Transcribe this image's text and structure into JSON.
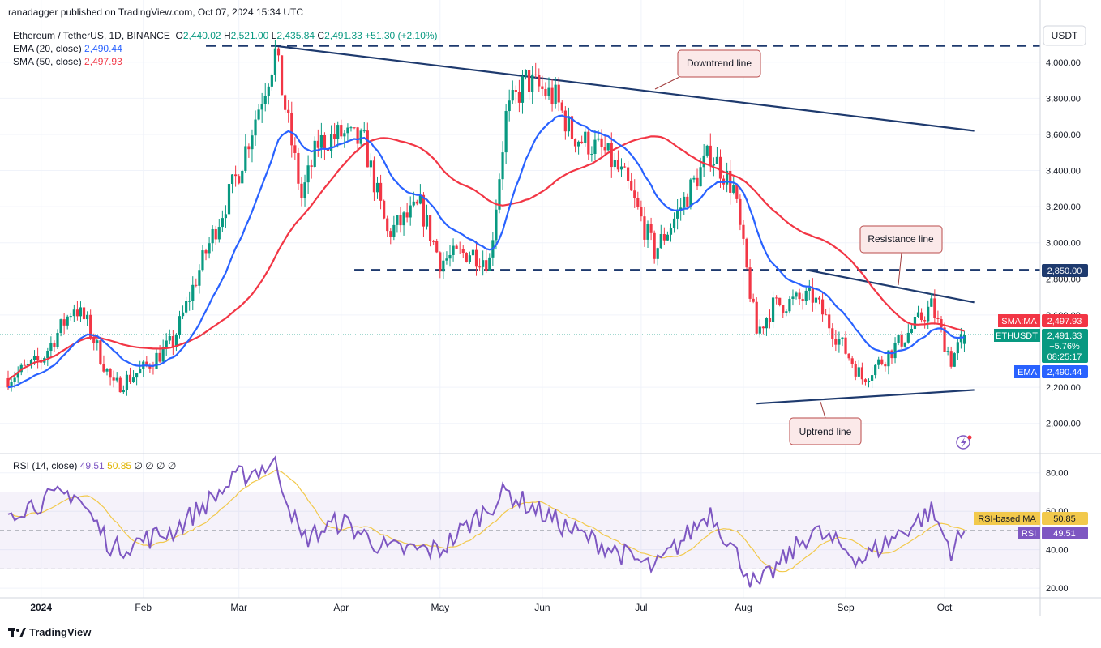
{
  "header": {
    "publisher": "ranadagger published on TradingView.com, Oct 07, 2024 15:34 UTC"
  },
  "legend": {
    "symbol": "Ethereum / TetherUS, 1D, BINANCE",
    "o_label": "O",
    "o": "2,440.02",
    "h_label": "H",
    "h": "2,521.00",
    "l_label": "L",
    "l": "2,435.84",
    "c_label": "C",
    "c": "2,491.33",
    "change": "+51.30 (+2.10%)",
    "ema_label": "EMA (20, close)",
    "ema_value": "2,490.44",
    "sma_label": "SMA (50, close)",
    "sma_value": "2,497.93"
  },
  "rsi_legend": {
    "label": "RSI (14, close)",
    "rsi": "49.51",
    "ma": "50.85",
    "rest": "∅ ∅ ∅ ∅"
  },
  "axis": {
    "currency": "USDT",
    "price_ticks": [
      "4,000.00",
      "3,800.00",
      "3,600.00",
      "3,400.00",
      "3,200.00",
      "3,000.00",
      "2,800.00",
      "2,600.00",
      "2,200.00",
      "2,000.00"
    ],
    "rsi_ticks": [
      "80.00",
      "60.00",
      "40.00",
      "20.00"
    ],
    "x_labels": [
      "2024",
      "Feb",
      "Mar",
      "Apr",
      "May",
      "Jun",
      "Jul",
      "Aug",
      "Sep",
      "Oct"
    ]
  },
  "price_badges": {
    "level": "2,850.00",
    "sma_label": "SMA:MA",
    "sma_value": "2,497.93",
    "symbol": "ETHUSDT",
    "last": "2,491.33",
    "change_pct": "+5.76%",
    "countdown": "08:25:17",
    "ema_label": "EMA",
    "ema_value": "2,490.44",
    "rsi_ma_label": "RSI-based MA",
    "rsi_ma_value": "50.85",
    "rsi_label": "RSI",
    "rsi_value": "49.51"
  },
  "annotations": {
    "downtrend": "Downtrend line",
    "resistance": "Resistance line",
    "uptrend": "Uptrend line"
  },
  "footer": {
    "brand": "TradingView"
  },
  "colors": {
    "up": "#089981",
    "down": "#f23645",
    "ema": "#2962ff",
    "sma": "#f23645",
    "rsi": "#7e57c2",
    "rsi_ma": "#f2c94c",
    "line": "#1e3a6e"
  },
  "chart_data": {
    "type": "candlestick",
    "ylim": [
      1900,
      4120
    ],
    "rsi_ylim": [
      15,
      90
    ],
    "x_range": [
      "2023-12-22",
      "2024-10-30"
    ],
    "levels": [
      4090,
      2850
    ],
    "trendlines": {
      "downtrend": [
        [
          "2024-03-12",
          4090
        ],
        [
          "2024-10-10",
          3620
        ]
      ],
      "resistance": [
        [
          "2024-08-20",
          2850
        ],
        [
          "2024-10-10",
          2670
        ]
      ],
      "uptrend": [
        [
          "2024-08-05",
          2110
        ],
        [
          "2024-10-10",
          2185
        ]
      ]
    },
    "key_points": [
      [
        "2023-12-22",
        2250
      ],
      [
        "2024-01-01",
        2350
      ],
      [
        "2024-01-11",
        2650
      ],
      [
        "2024-01-15",
        2550
      ],
      [
        "2024-01-23",
        2200
      ],
      [
        "2024-02-01",
        2300
      ],
      [
        "2024-02-10",
        2450
      ],
      [
        "2024-02-20",
        2950
      ],
      [
        "2024-03-01",
        3400
      ],
      [
        "2024-03-12",
        4050
      ],
      [
        "2024-03-20",
        3250
      ],
      [
        "2024-03-25",
        3550
      ],
      [
        "2024-04-01",
        3600
      ],
      [
        "2024-04-08",
        3550
      ],
      [
        "2024-04-15",
        3050
      ],
      [
        "2024-04-25",
        3200
      ],
      [
        "2024-05-01",
        2900
      ],
      [
        "2024-05-10",
        2950
      ],
      [
        "2024-05-16",
        2900
      ],
      [
        "2024-05-21",
        3700
      ],
      [
        "2024-05-27",
        3900
      ],
      [
        "2024-06-05",
        3800
      ],
      [
        "2024-06-10",
        3600
      ],
      [
        "2024-06-20",
        3500
      ],
      [
        "2024-06-26",
        3350
      ],
      [
        "2024-07-05",
        2950
      ],
      [
        "2024-07-10",
        3100
      ],
      [
        "2024-07-22",
        3500
      ],
      [
        "2024-07-29",
        3300
      ],
      [
        "2024-08-05",
        2500
      ],
      [
        "2024-08-10",
        2650
      ],
      [
        "2024-08-22",
        2700
      ],
      [
        "2024-09-06",
        2250
      ],
      [
        "2024-09-12",
        2350
      ],
      [
        "2024-09-20",
        2500
      ],
      [
        "2024-09-27",
        2650
      ],
      [
        "2024-10-03",
        2350
      ],
      [
        "2024-10-07",
        2491
      ]
    ],
    "ema20_last": 2490.44,
    "sma50_last": 2497.93,
    "rsi_key_points": [
      [
        "2023-12-22",
        60
      ],
      [
        "2024-01-11",
        70
      ],
      [
        "2024-01-23",
        40
      ],
      [
        "2024-02-10",
        50
      ],
      [
        "2024-03-01",
        78
      ],
      [
        "2024-03-12",
        85
      ],
      [
        "2024-03-20",
        45
      ],
      [
        "2024-04-01",
        55
      ],
      [
        "2024-04-15",
        40
      ],
      [
        "2024-05-01",
        40
      ],
      [
        "2024-05-21",
        70
      ],
      [
        "2024-06-10",
        50
      ],
      [
        "2024-07-05",
        30
      ],
      [
        "2024-07-22",
        60
      ],
      [
        "2024-08-05",
        20
      ],
      [
        "2024-08-22",
        50
      ],
      [
        "2024-09-06",
        35
      ],
      [
        "2024-09-27",
        60
      ],
      [
        "2024-10-03",
        40
      ],
      [
        "2024-10-07",
        49.51
      ]
    ],
    "rsi_ma_last": 50.85
  }
}
